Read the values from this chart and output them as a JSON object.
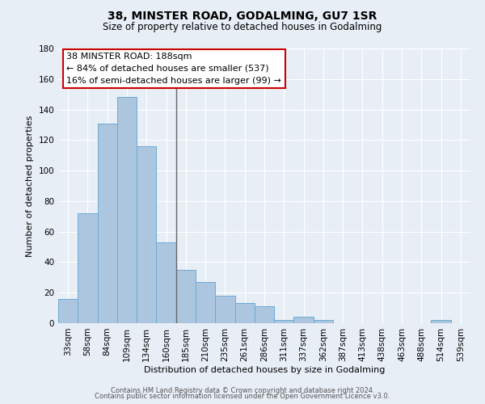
{
  "title": "38, MINSTER ROAD, GODALMING, GU7 1SR",
  "subtitle": "Size of property relative to detached houses in Godalming",
  "xlabel": "Distribution of detached houses by size in Godalming",
  "ylabel": "Number of detached properties",
  "bar_labels": [
    "33sqm",
    "58sqm",
    "84sqm",
    "109sqm",
    "134sqm",
    "160sqm",
    "185sqm",
    "210sqm",
    "235sqm",
    "261sqm",
    "286sqm",
    "311sqm",
    "337sqm",
    "362sqm",
    "387sqm",
    "413sqm",
    "438sqm",
    "463sqm",
    "488sqm",
    "514sqm",
    "539sqm"
  ],
  "bar_values": [
    16,
    72,
    131,
    148,
    116,
    53,
    35,
    27,
    18,
    13,
    11,
    2,
    4,
    2,
    0,
    0,
    0,
    0,
    0,
    2,
    0
  ],
  "bar_color": "#adc6e0",
  "bar_edge_color": "#6aaad4",
  "background_color": "#e8eef6",
  "grid_color": "#ffffff",
  "ylim": [
    0,
    180
  ],
  "yticks": [
    0,
    20,
    40,
    60,
    80,
    100,
    120,
    140,
    160,
    180
  ],
  "vline_color": "#666666",
  "annotation_title": "38 MINSTER ROAD: 188sqm",
  "annotation_line1": "← 84% of detached houses are smaller (537)",
  "annotation_line2": "16% of semi-detached houses are larger (99) →",
  "annotation_box_color": "#ffffff",
  "annotation_box_edge": "#cc0000",
  "footer_line1": "Contains HM Land Registry data © Crown copyright and database right 2024.",
  "footer_line2": "Contains public sector information licensed under the Open Government Licence v3.0."
}
